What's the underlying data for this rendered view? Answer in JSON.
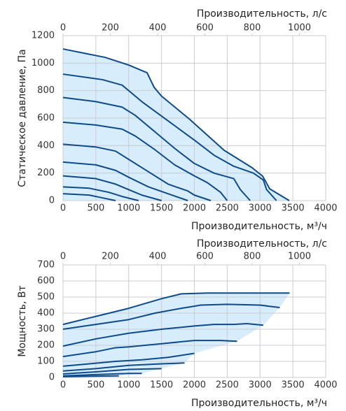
{
  "chart_data": [
    {
      "type": "line",
      "x_label": "Производительность, м³/ч",
      "x2_label": "Производительность, л/с",
      "y_label": "Статическое давление, Па",
      "xlim": [
        0,
        4000
      ],
      "xticks": [
        0,
        500,
        1000,
        1500,
        2000,
        2500,
        3000,
        3500,
        4000
      ],
      "x2lim": [
        0,
        1111.1
      ],
      "x2ticks": [
        0,
        200,
        400,
        600,
        800,
        1000
      ],
      "ylim": [
        0,
        1200
      ],
      "yticks": [
        0,
        200,
        400,
        600,
        800,
        1000,
        1200
      ],
      "grid": true,
      "area_color": "#d8edfb",
      "series": [
        {
          "color": "#0d4a8c",
          "x": [
            0,
            640,
            1000,
            1280,
            1387,
            1500,
            1920,
            2453,
            2880,
            3040,
            3147,
            3445
          ],
          "values": [
            1103,
            1042,
            986,
            930,
            824,
            760,
            595,
            366,
            239,
            178,
            86,
            0
          ]
        },
        {
          "color": "#0d4a8c",
          "x": [
            0,
            600,
            900,
            1000,
            1200,
            1600,
            2000,
            2300,
            2600,
            2900,
            3050,
            3100,
            3250
          ],
          "values": [
            920,
            880,
            840,
            800,
            720,
            580,
            440,
            330,
            250,
            200,
            150,
            80,
            0
          ]
        },
        {
          "color": "#0d4a8c",
          "x": [
            0,
            500,
            900,
            1100,
            1400,
            1700,
            2000,
            2300,
            2600,
            2700,
            2850
          ],
          "values": [
            750,
            720,
            680,
            620,
            500,
            380,
            270,
            200,
            160,
            80,
            0
          ]
        },
        {
          "color": "#0d4a8c",
          "x": [
            0,
            500,
            900,
            1100,
            1400,
            1700,
            2000,
            2200,
            2400,
            2500
          ],
          "values": [
            570,
            550,
            520,
            470,
            370,
            260,
            180,
            130,
            60,
            0
          ]
        },
        {
          "color": "#0d4a8c",
          "x": [
            0,
            500,
            800,
            1000,
            1300,
            1600,
            1900,
            2000,
            2250
          ],
          "values": [
            410,
            390,
            360,
            300,
            210,
            120,
            70,
            40,
            0
          ]
        },
        {
          "color": "#0d4a8c",
          "x": [
            0,
            500,
            800,
            1000,
            1300,
            1600,
            1900
          ],
          "values": [
            280,
            260,
            220,
            170,
            100,
            50,
            0
          ]
        },
        {
          "color": "#0d4a8c",
          "x": [
            0,
            500,
            800,
            1000,
            1200,
            1500
          ],
          "values": [
            180,
            160,
            120,
            80,
            40,
            0
          ]
        },
        {
          "color": "#0d4a8c",
          "x": [
            0,
            400,
            700,
            900,
            1150
          ],
          "values": [
            100,
            90,
            60,
            30,
            0
          ]
        },
        {
          "color": "#0d4a8c",
          "x": [
            0,
            400,
            600,
            800
          ],
          "values": [
            50,
            40,
            20,
            0
          ]
        }
      ]
    },
    {
      "type": "line",
      "x_label": "Производительность, м³/ч",
      "x2_label": "Производительность, л/с",
      "y_label": "Мощность, Вт",
      "xlim": [
        0,
        4000
      ],
      "xticks": [
        0,
        500,
        1000,
        1500,
        2000,
        2500,
        3000,
        3500,
        4000
      ],
      "x2lim": [
        0,
        1111.1
      ],
      "x2ticks": [
        0,
        200,
        400,
        600,
        800,
        1000
      ],
      "ylim": [
        0,
        700
      ],
      "yticks": [
        0,
        100,
        200,
        300,
        400,
        500,
        600,
        700
      ],
      "grid": true,
      "area_color": "#d8edfb",
      "series": [
        {
          "color": "#0d4a8c",
          "x": [
            0,
            500,
            1000,
            1500,
            1800,
            2200,
            3000,
            3450
          ],
          "values": [
            330,
            380,
            430,
            490,
            520,
            525,
            525,
            525
          ]
        },
        {
          "color": "#0d4a8c",
          "x": [
            0,
            500,
            1000,
            1400,
            1800,
            2100,
            2500,
            3000,
            3300
          ],
          "values": [
            300,
            330,
            360,
            400,
            430,
            450,
            455,
            450,
            435
          ]
        },
        {
          "color": "#0d4a8c",
          "x": [
            0,
            500,
            1000,
            1500,
            2000,
            2300,
            2600,
            2800,
            3050
          ],
          "values": [
            195,
            240,
            275,
            300,
            320,
            330,
            330,
            335,
            325
          ]
        },
        {
          "color": "#0d4a8c",
          "x": [
            0,
            500,
            800,
            1000,
            1500,
            2000,
            2400,
            2650
          ],
          "values": [
            130,
            160,
            185,
            190,
            210,
            230,
            230,
            225
          ]
        },
        {
          "color": "#0d4a8c",
          "x": [
            0,
            400,
            800,
            1200,
            1600,
            2000
          ],
          "values": [
            70,
            85,
            100,
            110,
            125,
            150
          ]
        },
        {
          "color": "#0d4a8c",
          "x": [
            0,
            500,
            1000,
            1500,
            1850
          ],
          "values": [
            40,
            55,
            75,
            85,
            90
          ]
        },
        {
          "color": "#0d4a8c",
          "x": [
            0,
            500,
            1000,
            1500
          ],
          "values": [
            22,
            35,
            50,
            55
          ]
        },
        {
          "color": "#0d4a8c",
          "x": [
            0,
            500,
            1000,
            1200
          ],
          "values": [
            10,
            18,
            25,
            25
          ]
        },
        {
          "color": "#0d4a8c",
          "x": [
            0,
            500,
            850
          ],
          "values": [
            5,
            8,
            10
          ]
        }
      ]
    }
  ]
}
